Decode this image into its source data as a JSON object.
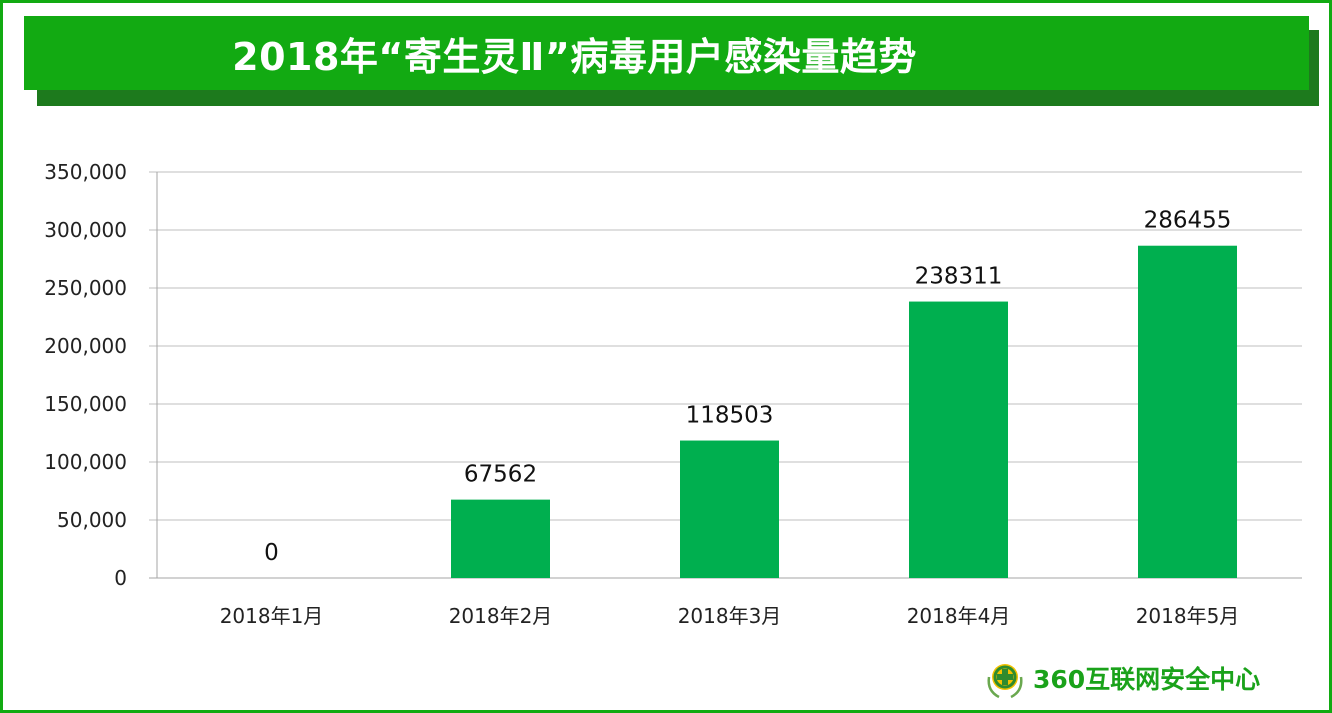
{
  "title": "2018年“寄生灵Ⅱ”病毒用户感染量趋势",
  "logo": {
    "text": "360互联网安全中心",
    "icon": "360-shield-logo-icon"
  },
  "colors": {
    "bar": "#00af4f",
    "title_bar": "#12aa12",
    "title_shadow": "#1d7a1d",
    "frame": "#12aa12",
    "grid": "#bfbfbf"
  },
  "chart_data": {
    "type": "bar",
    "title": "2018年“寄生灵Ⅱ”病毒用户感染量趋势",
    "xlabel": "",
    "ylabel": "",
    "categories": [
      "2018年1月",
      "2018年2月",
      "2018年3月",
      "2018年4月",
      "2018年5月"
    ],
    "values": [
      0,
      67562,
      118503,
      238311,
      286455
    ],
    "data_labels": [
      "0",
      "67562",
      "118503",
      "238311",
      "286455"
    ],
    "ylim": [
      0,
      350000
    ],
    "yticks": [
      0,
      50000,
      100000,
      150000,
      200000,
      250000,
      300000,
      350000
    ],
    "ytick_labels": [
      "0",
      "50,000",
      "100,000",
      "150,000",
      "200,000",
      "250,000",
      "300,000",
      "350,000"
    ],
    "grid": true,
    "legend": "none"
  }
}
